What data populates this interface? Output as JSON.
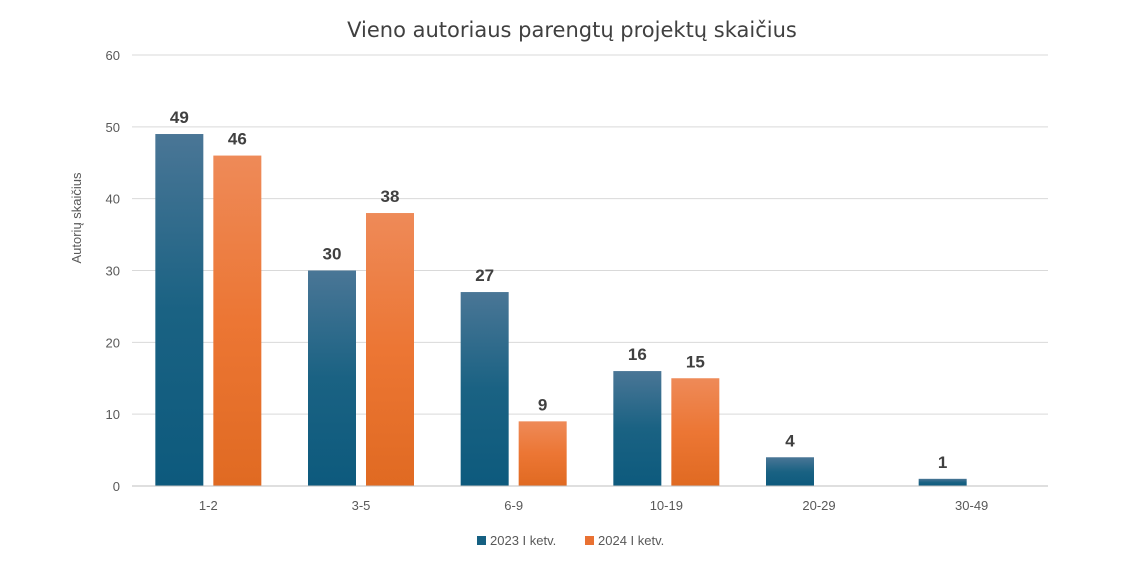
{
  "chart_data": {
    "type": "bar",
    "title": "Vieno autoriaus parengtų projektų skaičius",
    "xlabel": "",
    "ylabel": "Autorių skaičius",
    "ylim": [
      0,
      60
    ],
    "yticks": [
      0,
      10,
      20,
      30,
      40,
      50,
      60
    ],
    "grid": true,
    "legend_position": "bottom",
    "categories": [
      "1-2",
      "3-5",
      "6-9",
      "10-19",
      "20-29",
      "30-49"
    ],
    "series": [
      {
        "name": "2023 I ketv.",
        "color": "#156082",
        "values": [
          49,
          30,
          27,
          16,
          4,
          1
        ]
      },
      {
        "name": "2024 I ketv.",
        "color": "#E97132",
        "values": [
          46,
          38,
          9,
          15,
          null,
          null
        ]
      }
    ]
  }
}
